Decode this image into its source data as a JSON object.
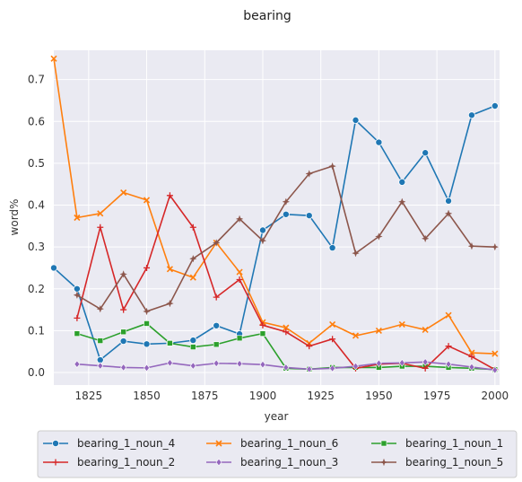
{
  "chart_data": {
    "type": "line",
    "title": "bearing",
    "xlabel": "year",
    "ylabel": "word%",
    "xlim": [
      1810,
      2002
    ],
    "ylim": [
      -0.03,
      0.77
    ],
    "xticks": [
      1825,
      1850,
      1875,
      1900,
      1925,
      1950,
      1975,
      2000
    ],
    "yticks": [
      0.0,
      0.1,
      0.2,
      0.3,
      0.4,
      0.5,
      0.6,
      0.7
    ],
    "grid": true,
    "legend": "bottom-center",
    "x": [
      1810,
      1820,
      1830,
      1840,
      1850,
      1860,
      1870,
      1880,
      1890,
      1900,
      1910,
      1920,
      1930,
      1940,
      1950,
      1960,
      1970,
      1980,
      1990,
      2000
    ],
    "series": [
      {
        "name": "bearing_1_noun_4",
        "color": "#1f77b4",
        "marker": "circle",
        "values": [
          0.25,
          0.2,
          0.03,
          0.075,
          0.068,
          0.07,
          0.077,
          0.112,
          0.092,
          0.34,
          0.378,
          0.375,
          0.298,
          0.603,
          0.55,
          0.455,
          0.525,
          0.41,
          0.615,
          0.637
        ]
      },
      {
        "name": "bearing_1_noun_6",
        "color": "#ff7f0e",
        "marker": "x",
        "values": [
          0.75,
          0.37,
          0.38,
          0.43,
          0.412,
          0.247,
          0.227,
          0.31,
          0.24,
          0.12,
          0.107,
          0.07,
          0.115,
          0.088,
          0.1,
          0.115,
          0.102,
          0.137,
          0.047,
          0.045
        ]
      },
      {
        "name": "bearing_1_noun_1",
        "color": "#2ca02c",
        "marker": "square",
        "values": [
          null,
          0.093,
          0.076,
          0.097,
          0.117,
          0.07,
          0.061,
          0.067,
          0.082,
          0.093,
          0.01,
          0.008,
          0.012,
          0.012,
          0.012,
          0.015,
          0.015,
          0.012,
          0.01,
          0.007
        ]
      },
      {
        "name": "bearing_1_noun_2",
        "color": "#d62728",
        "marker": "plus",
        "values": [
          null,
          0.13,
          0.347,
          0.15,
          0.25,
          0.423,
          0.347,
          0.18,
          0.222,
          0.113,
          0.097,
          0.063,
          0.08,
          0.01,
          0.02,
          0.022,
          0.01,
          0.063,
          0.038,
          0.007
        ]
      },
      {
        "name": "bearing_1_noun_3",
        "color": "#9467bd",
        "marker": "diamond",
        "values": [
          null,
          0.02,
          0.016,
          0.012,
          0.011,
          0.023,
          0.016,
          0.022,
          0.021,
          0.019,
          0.012,
          0.008,
          0.01,
          0.015,
          0.022,
          0.023,
          0.025,
          0.02,
          0.013,
          0.006
        ]
      },
      {
        "name": "bearing_1_noun_5",
        "color": "#8c564b",
        "marker": "star",
        "values": [
          null,
          0.185,
          0.152,
          0.235,
          0.146,
          0.165,
          0.272,
          0.31,
          0.367,
          0.315,
          0.408,
          0.475,
          0.493,
          0.285,
          0.325,
          0.408,
          0.32,
          0.38,
          0.302,
          0.3
        ]
      }
    ]
  }
}
